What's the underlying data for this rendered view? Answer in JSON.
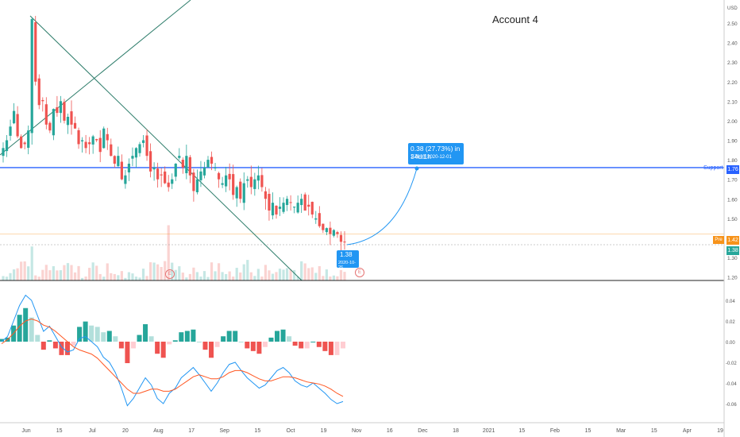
{
  "title": "Account 4",
  "price_axis": {
    "currency": "USD",
    "ticks": [
      "2.50",
      "2.40",
      "2.30",
      "2.20",
      "2.10",
      "2.00",
      "1.90",
      "1.80",
      "1.70",
      "1.60",
      "1.50",
      "1.40",
      "1.30",
      "1.20"
    ],
    "support_label": "Support",
    "support_value": "1.76",
    "pre_label": "Pre",
    "pre_value": "1.42",
    "last_value": "1.38"
  },
  "indicator_axis": {
    "ticks": [
      "0.04",
      "0.02",
      "0.00",
      "-0.02",
      "-0.04",
      "-0.06"
    ]
  },
  "time_axis": {
    "labels": [
      "Jun",
      "15",
      "Jul",
      "20",
      "Aug",
      "17",
      "Sep",
      "15",
      "Oct",
      "19",
      "Nov",
      "16",
      "Dec",
      "18",
      "2021",
      "15",
      "Feb",
      "15",
      "Mar",
      "15",
      "Apr",
      "19"
    ]
  },
  "projection": {
    "line1": "0.38 (27.73%) in 34d 1h",
    "line2": "1.76 @ 2020-12-01"
  },
  "start_point": {
    "line1": "1.38",
    "line2": "2020-10-26"
  },
  "earnings_marker": "E",
  "colors": {
    "up": "#26a69a",
    "down": "#ef5350",
    "support": "#2962ff",
    "pre_line": "#f7931a",
    "trend": "#2e7d6b",
    "macd": "#2196f3",
    "signal": "#ff5722"
  },
  "chart_data": {
    "type": "candlestick",
    "support_level": 1.76,
    "pre_level": 1.42,
    "y_range": [
      1.2,
      2.6
    ],
    "closes": [
      1.86,
      1.9,
      1.97,
      2.05,
      1.92,
      1.86,
      1.88,
      1.95,
      2.52,
      2.2,
      2.08,
      2.1,
      1.98,
      1.95,
      2.06,
      2.04,
      2.1,
      2.0,
      2.02,
      1.98,
      1.96,
      1.88,
      1.9,
      1.86,
      1.88,
      1.92,
      1.9,
      1.84,
      1.96,
      1.9,
      1.82,
      1.78,
      1.82,
      1.7,
      1.72,
      1.78,
      1.82,
      1.86,
      1.88,
      1.9,
      1.82,
      1.74,
      1.76,
      1.7,
      1.72,
      1.68,
      1.66,
      1.7,
      1.78,
      1.82,
      1.76,
      1.82,
      1.72,
      1.64,
      1.7,
      1.74,
      1.76,
      1.8,
      1.78,
      1.76,
      1.7,
      1.68,
      1.72,
      1.7,
      1.62,
      1.66,
      1.6,
      1.68,
      1.7,
      1.66,
      1.7,
      1.72,
      1.66,
      1.6,
      1.54,
      1.58,
      1.52,
      1.56,
      1.58,
      1.6,
      1.58,
      1.56,
      1.58,
      1.6,
      1.54,
      1.56,
      1.52,
      1.5,
      1.46,
      1.44,
      1.45,
      1.42,
      1.44,
      1.42,
      1.38,
      1.38
    ],
    "macd": [
      0.0,
      0.005,
      0.02,
      0.035,
      0.045,
      0.04,
      0.025,
      0.01,
      0.015,
      0.005,
      -0.005,
      -0.01,
      -0.008,
      0.003,
      0.005,
      0.0,
      -0.005,
      -0.015,
      -0.02,
      -0.03,
      -0.045,
      -0.062,
      -0.055,
      -0.045,
      -0.035,
      -0.042,
      -0.055,
      -0.06,
      -0.05,
      -0.045,
      -0.035,
      -0.03,
      -0.025,
      -0.032,
      -0.04,
      -0.048,
      -0.04,
      -0.03,
      -0.022,
      -0.02,
      -0.028,
      -0.035,
      -0.04,
      -0.045,
      -0.042,
      -0.035,
      -0.028,
      -0.025,
      -0.03,
      -0.038,
      -0.042,
      -0.044,
      -0.04,
      -0.045,
      -0.05,
      -0.056,
      -0.06,
      -0.058
    ],
    "signal": [
      -0.002,
      0.002,
      0.008,
      0.015,
      0.02,
      0.022,
      0.02,
      0.016,
      0.014,
      0.01,
      0.005,
      0.0,
      -0.005,
      -0.008,
      -0.01,
      -0.012,
      -0.016,
      -0.022,
      -0.028,
      -0.034,
      -0.04,
      -0.046,
      -0.05,
      -0.05,
      -0.048,
      -0.046,
      -0.046,
      -0.048,
      -0.048,
      -0.046,
      -0.042,
      -0.038,
      -0.034,
      -0.032,
      -0.034,
      -0.036,
      -0.036,
      -0.034,
      -0.03,
      -0.028,
      -0.028,
      -0.03,
      -0.033,
      -0.036,
      -0.038,
      -0.038,
      -0.036,
      -0.034,
      -0.034,
      -0.035,
      -0.037,
      -0.039,
      -0.04,
      -0.041,
      -0.043,
      -0.046,
      -0.05,
      -0.053
    ]
  }
}
